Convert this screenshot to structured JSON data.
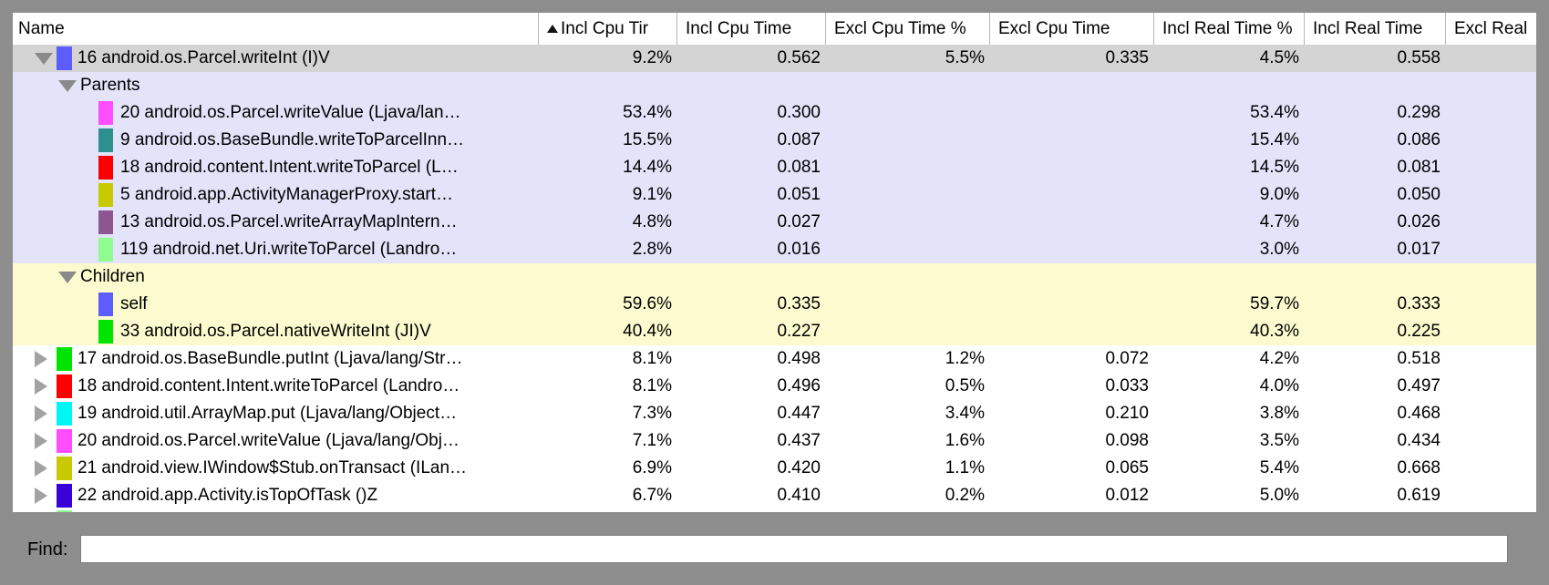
{
  "window": {
    "background_color": "#8e8e8e",
    "selected_row_color": "#d4d4d4",
    "parents_section_color": "#e3e3fa",
    "children_section_color": "#fbfbcf"
  },
  "table": {
    "columns": [
      {
        "label": "Name",
        "sorted": false
      },
      {
        "label": "Incl Cpu Tir",
        "sorted": true
      },
      {
        "label": "Incl Cpu Time",
        "sorted": false
      },
      {
        "label": "Excl Cpu Time %",
        "sorted": false
      },
      {
        "label": "Excl Cpu Time",
        "sorted": false
      },
      {
        "label": "Incl Real Time %",
        "sorted": false
      },
      {
        "label": "Incl Real Time",
        "sorted": false
      },
      {
        "label": "Excl Real",
        "sorted": false
      }
    ],
    "rows": [
      {
        "type": "root",
        "swatch": "#5c5cff",
        "name": "16 android.os.Parcel.writeInt (I)V",
        "bg": "#d4d4d4",
        "values": [
          "9.2%",
          "0.562",
          "5.5%",
          "0.335",
          "4.5%",
          "0.558",
          ""
        ]
      },
      {
        "type": "section",
        "name": "Parents",
        "bg": "#e3e3fa",
        "values": [
          "",
          "",
          "",
          "",
          "",
          "",
          ""
        ]
      },
      {
        "type": "entry",
        "swatch": "#ff4dff",
        "name": "20 android.os.Parcel.writeValue (Ljava/lan…",
        "bg": "#e3e3fa",
        "values": [
          "53.4%",
          "0.300",
          "",
          "",
          "53.4%",
          "0.298",
          ""
        ]
      },
      {
        "type": "entry",
        "swatch": "#2e8f8f",
        "name": "9 android.os.BaseBundle.writeToParcelInn…",
        "bg": "#e3e3fa",
        "values": [
          "15.5%",
          "0.087",
          "",
          "",
          "15.4%",
          "0.086",
          ""
        ]
      },
      {
        "type": "entry",
        "swatch": "#fa0000",
        "name": "18 android.content.Intent.writeToParcel (L…",
        "bg": "#e3e3fa",
        "values": [
          "14.4%",
          "0.081",
          "",
          "",
          "14.5%",
          "0.081",
          ""
        ]
      },
      {
        "type": "entry",
        "swatch": "#c9c900",
        "name": "5 android.app.ActivityManagerProxy.start…",
        "bg": "#e3e3fa",
        "values": [
          "9.1%",
          "0.051",
          "",
          "",
          "9.0%",
          "0.050",
          ""
        ]
      },
      {
        "type": "entry",
        "swatch": "#8e5690",
        "name": "13 android.os.Parcel.writeArrayMapIntern…",
        "bg": "#e3e3fa",
        "values": [
          "4.8%",
          "0.027",
          "",
          "",
          "4.7%",
          "0.026",
          ""
        ]
      },
      {
        "type": "entry",
        "swatch": "#90fb90",
        "name": "119 android.net.Uri.writeToParcel (Landro…",
        "bg": "#e3e3fa",
        "values": [
          "2.8%",
          "0.016",
          "",
          "",
          "3.0%",
          "0.017",
          ""
        ]
      },
      {
        "type": "section",
        "name": "Children",
        "bg": "#fbfbcf",
        "values": [
          "",
          "",
          "",
          "",
          "",
          "",
          ""
        ]
      },
      {
        "type": "entry",
        "swatch": "#5c5cff",
        "name": "self",
        "bg": "#fbfbcf",
        "values": [
          "59.6%",
          "0.335",
          "",
          "",
          "59.7%",
          "0.333",
          ""
        ]
      },
      {
        "type": "entry",
        "swatch": "#00e400",
        "name": "33 android.os.Parcel.nativeWriteInt (JI)V",
        "bg": "#fbfbcf",
        "values": [
          "40.4%",
          "0.227",
          "",
          "",
          "40.3%",
          "0.225",
          ""
        ]
      },
      {
        "type": "collapsed",
        "swatch": "#00e400",
        "name": "17 android.os.BaseBundle.putInt (Ljava/lang/Str…",
        "bg": "#ffffff",
        "values": [
          "8.1%",
          "0.498",
          "1.2%",
          "0.072",
          "4.2%",
          "0.518",
          ""
        ]
      },
      {
        "type": "collapsed",
        "swatch": "#fa0000",
        "name": "18 android.content.Intent.writeToParcel (Landro…",
        "bg": "#ffffff",
        "values": [
          "8.1%",
          "0.496",
          "0.5%",
          "0.033",
          "4.0%",
          "0.497",
          ""
        ]
      },
      {
        "type": "collapsed",
        "swatch": "#00f5f5",
        "name": "19 android.util.ArrayMap.put (Ljava/lang/Object…",
        "bg": "#ffffff",
        "values": [
          "7.3%",
          "0.447",
          "3.4%",
          "0.210",
          "3.8%",
          "0.468",
          ""
        ]
      },
      {
        "type": "collapsed",
        "swatch": "#ff4dff",
        "name": "20 android.os.Parcel.writeValue (Ljava/lang/Obj…",
        "bg": "#ffffff",
        "values": [
          "7.1%",
          "0.437",
          "1.6%",
          "0.098",
          "3.5%",
          "0.434",
          ""
        ]
      },
      {
        "type": "collapsed",
        "swatch": "#c9c900",
        "name": "21 android.view.IWindow$Stub.onTransact (ILan…",
        "bg": "#ffffff",
        "values": [
          "6.9%",
          "0.420",
          "1.1%",
          "0.065",
          "5.4%",
          "0.668",
          ""
        ]
      },
      {
        "type": "collapsed",
        "swatch": "#3a00d8",
        "name": "22 android.app.Activity.isTopOfTask ()Z",
        "bg": "#ffffff",
        "values": [
          "6.7%",
          "0.410",
          "0.2%",
          "0.012",
          "5.0%",
          "0.619",
          ""
        ]
      },
      {
        "type": "partial",
        "swatch": "#90fb90",
        "name": "",
        "bg": "#ffffff",
        "values": [
          "",
          "",
          "",
          "",
          "",
          "",
          ""
        ]
      }
    ]
  },
  "find": {
    "label": "Find:",
    "value": "",
    "placeholder": ""
  }
}
